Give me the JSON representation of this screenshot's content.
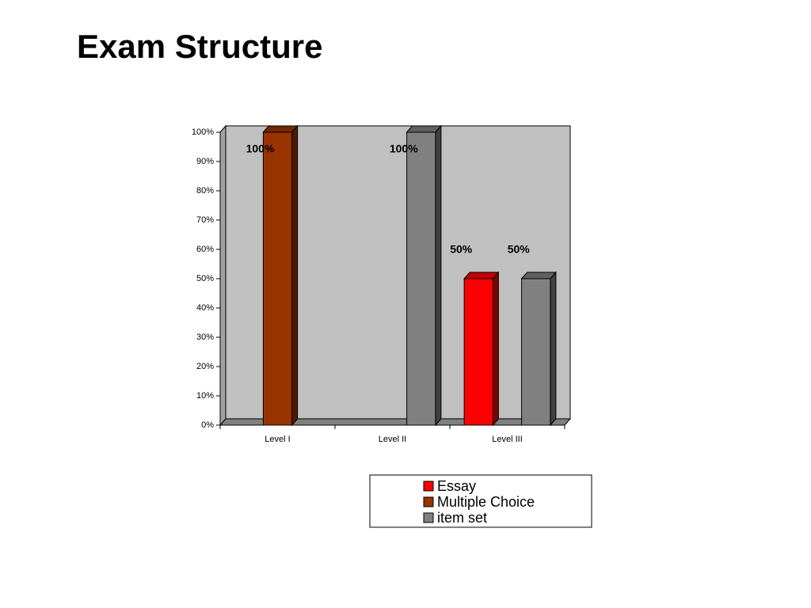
{
  "title": "Exam Structure",
  "chart_data": {
    "type": "bar3d",
    "categories": [
      "Level I",
      "Level II",
      "Level III"
    ],
    "series": [
      {
        "name": "Essay",
        "color": "#ff0000",
        "values": [
          null,
          null,
          50
        ],
        "value_labels": [
          null,
          null,
          "50%"
        ]
      },
      {
        "name": "Multiple Choice",
        "color": "#993300",
        "values": [
          100,
          null,
          null
        ],
        "value_labels": [
          "100%",
          null,
          null
        ]
      },
      {
        "name": "item set",
        "color": "#808080",
        "values": [
          null,
          100,
          50
        ],
        "value_labels": [
          null,
          "100%",
          "50%"
        ]
      }
    ],
    "ylim": [
      0,
      100
    ],
    "yticks": [
      {
        "value": 0,
        "label": "0%"
      },
      {
        "value": 10,
        "label": "10%"
      },
      {
        "value": 20,
        "label": "20%"
      },
      {
        "value": 30,
        "label": "30%"
      },
      {
        "value": 40,
        "label": "40%"
      },
      {
        "value": 50,
        "label": "50%"
      },
      {
        "value": 60,
        "label": "60%"
      },
      {
        "value": 70,
        "label": "70%"
      },
      {
        "value": 80,
        "label": "80%"
      },
      {
        "value": 90,
        "label": "90%"
      },
      {
        "value": 100,
        "label": "100%"
      }
    ],
    "legend": "bottom-right"
  }
}
